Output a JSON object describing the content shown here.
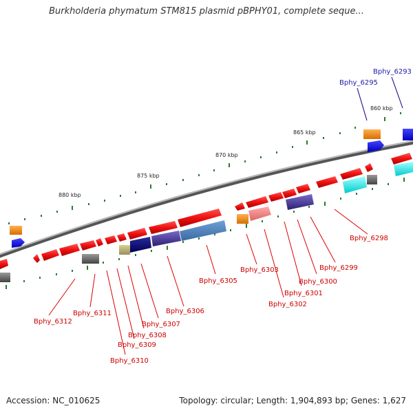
{
  "title": "Burkholderia phymatum STM815 plasmid pBPHY01, complete seque...",
  "footer": {
    "accession": "Accession: NC_010625",
    "summary": "Topology: circular; Length: 1,904,893 bp; Genes: 1,627"
  },
  "scale_labels": [
    "860 kbp",
    "865 kbp",
    "870 kbp",
    "875 kbp",
    "880 kbp"
  ],
  "gene_labels": [
    "Bphy_6293",
    "Bphy_6295",
    "Bphy_6298",
    "Bphy_6299",
    "Bphy_6300",
    "Bphy_6301",
    "Bphy_6302",
    "Bphy_6303",
    "Bphy_6305",
    "Bphy_6306",
    "Bphy_6307",
    "Bphy_6308",
    "Bphy_6309",
    "Bphy_6310",
    "Bphy_6311",
    "Bphy_6312"
  ],
  "colors": {
    "gene_red": "#ee1111",
    "label_red": "#cc0000",
    "label_blue": "#1a1aa8",
    "backbone": "#888888",
    "tick_green": "#2a7a2a"
  }
}
